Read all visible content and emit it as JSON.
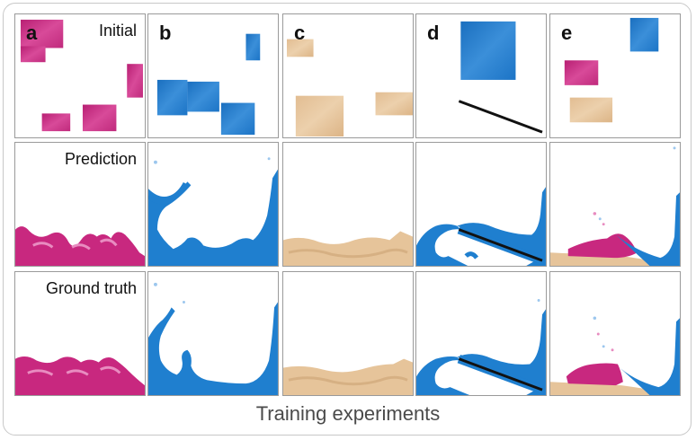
{
  "rows": [
    {
      "label": "Initial"
    },
    {
      "label": "Prediction"
    },
    {
      "label": "Ground truth"
    }
  ],
  "columns": [
    {
      "letter": "a",
      "material": "magenta"
    },
    {
      "letter": "b",
      "material": "blue"
    },
    {
      "letter": "c",
      "material": "sand"
    },
    {
      "letter": "d",
      "material": "blue"
    },
    {
      "letter": "e",
      "material": "mixed"
    }
  ],
  "caption": "Training experiments",
  "colors": {
    "magenta": "#c8287f",
    "magenta_light": "#e06aae",
    "blue": "#1f7fcf",
    "blue_light": "#5aa6e3",
    "sand": "#e6c49a",
    "sand_dark": "#d6b083",
    "ramp": "#111111",
    "border": "#9a9a9a"
  }
}
